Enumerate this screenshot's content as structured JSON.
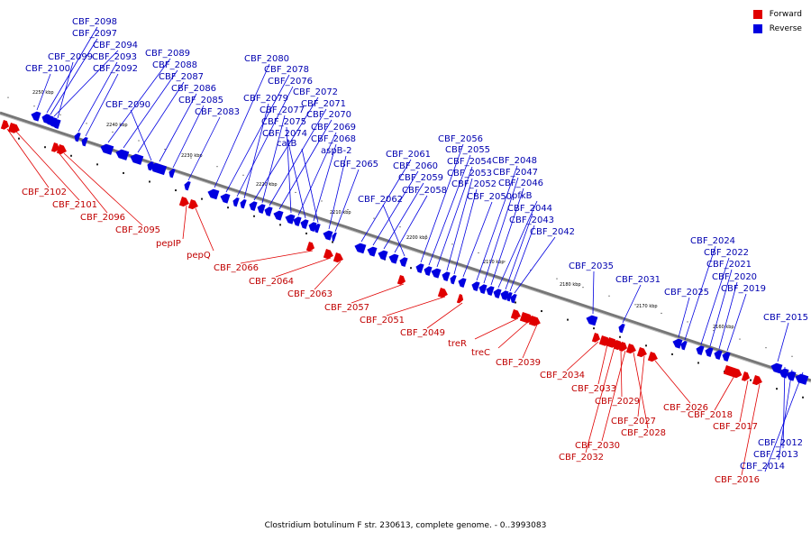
{
  "legend": [
    {
      "label": "Forward",
      "color": "#e00000"
    },
    {
      "label": "Reverse",
      "color": "#0000e0"
    }
  ],
  "caption": "Clostridium botulinum F str. 230613, complete genome. - 0..3993083",
  "ticks": [
    "2250 kbp",
    "2240 kbp",
    "2230 kbp",
    "2220 kbp",
    "2210 kbp",
    "2200 kbp",
    "2190 kbp",
    "2180 kbp",
    "2170 kbp",
    "2160 kbp"
  ],
  "reverse_genes": [
    "CBF_2098",
    "CBF_2097",
    "CBF_2094",
    "CBF_2099",
    "CBF_2093",
    "CBF_2100",
    "CBF_2092",
    "CBF_2089",
    "CBF_2088",
    "CBF_2087",
    "CBF_2090",
    "CBF_2086",
    "CBF_2085",
    "CBF_2083",
    "CBF_2080",
    "CBF_2078",
    "CBF_2076",
    "CBF_2079",
    "CBF_2072",
    "CBF_2077",
    "CBF_2071",
    "CBF_2070",
    "CBF_2075",
    "CBF_2069",
    "CBF_2074",
    "CBF_2068",
    "catB",
    "aspB-2",
    "CBF_2065",
    "CBF_2061",
    "CBF_2060",
    "CBF_2059",
    "CBF_2058",
    "CBF_2062",
    "CBF_2056",
    "CBF_2055",
    "CBF_2054",
    "CBF_2053",
    "CBF_2052",
    "CBF_2050",
    "CBF_2048",
    "CBF_2047",
    "CBF_2046",
    "pfkB",
    "CBF_2044",
    "CBF_2043",
    "CBF_2042",
    "CBF_2035",
    "CBF_2031",
    "CBF_2025",
    "CBF_2024",
    "CBF_2022",
    "CBF_2021",
    "CBF_2020",
    "CBF_2019",
    "CBF_2015",
    "CBF_2012",
    "CBF_2013",
    "CBF_2014"
  ],
  "forward_genes": [
    "CBF_2102",
    "CBF_2101",
    "CBF_2096",
    "CBF_2095",
    "pepIP",
    "pepQ",
    "CBF_2066",
    "CBF_2064",
    "CBF_2063",
    "CBF_2057",
    "CBF_2051",
    "CBF_2049",
    "treR",
    "treC",
    "CBF_2039",
    "CBF_2034",
    "CBF_2033",
    "CBF_2029",
    "CBF_2026",
    "CBF_2027",
    "CBF_2028",
    "CBF_2030",
    "CBF_2032",
    "CBF_2018",
    "CBF_2017",
    "CBF_2016"
  ]
}
